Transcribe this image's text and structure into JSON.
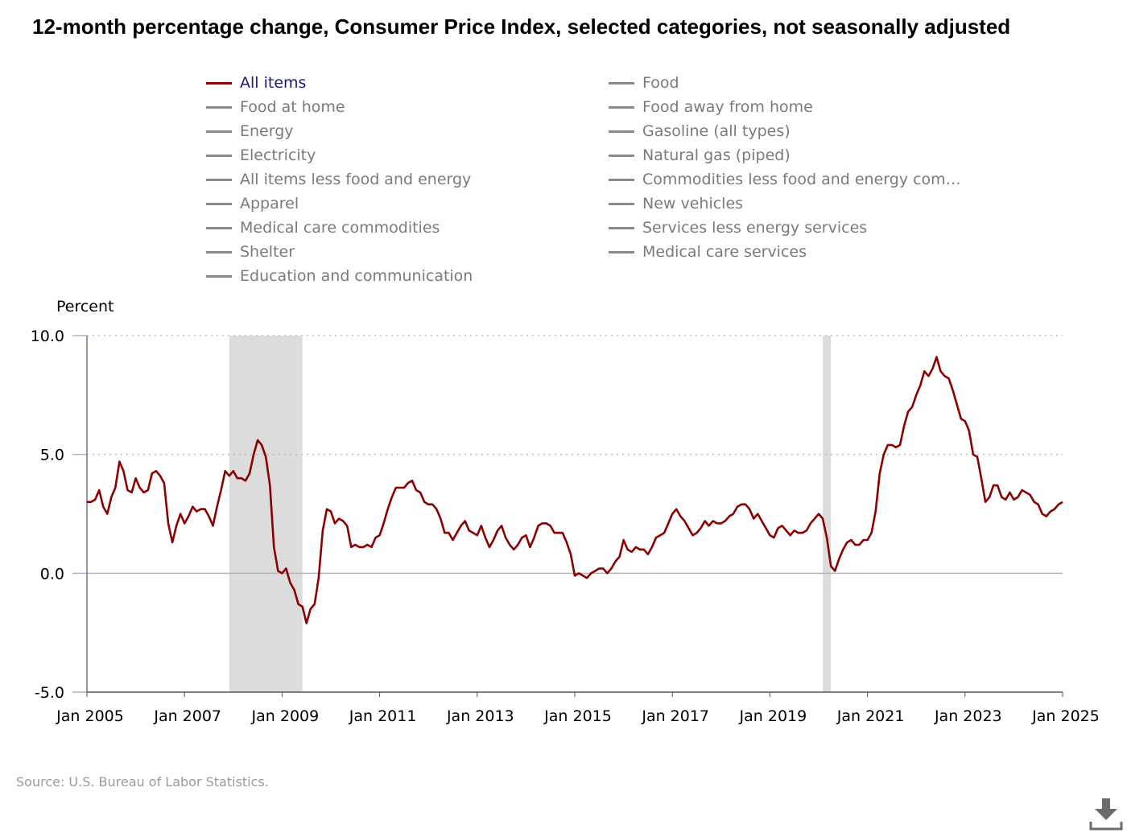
{
  "chart_data": {
    "type": "line",
    "title": "12-month percentage change, Consumer Price Index, selected categories, not seasonally adjusted",
    "ylabel": "Percent",
    "xlabel": "",
    "ylim": [
      -5.0,
      10.0
    ],
    "y_ticks": [
      "10.0",
      "5.0",
      "0.0",
      "-5.0"
    ],
    "x_ticks": [
      "Jan 2005",
      "Jan 2007",
      "Jan 2009",
      "Jan 2011",
      "Jan 2013",
      "Jan 2015",
      "Jan 2017",
      "Jan 2019",
      "Jan 2021",
      "Jan 2023",
      "Jan 2025"
    ],
    "x_range": [
      "2005-01",
      "2025-01"
    ],
    "grid": "horizontal dotted at 5.0 and 10.0; solid zero line",
    "legend_placement": "top, two columns",
    "recession_shading": [
      {
        "start": "2007-12",
        "end": "2009-06"
      },
      {
        "start": "2020-02",
        "end": "2020-04"
      }
    ],
    "legend": [
      {
        "label": "All items",
        "color": "#8b0000",
        "active": true
      },
      {
        "label": "Food",
        "color": "#8a8a8a",
        "active": false
      },
      {
        "label": "Food at home",
        "color": "#8a8a8a",
        "active": false
      },
      {
        "label": "Food away from home",
        "color": "#8a8a8a",
        "active": false
      },
      {
        "label": "Energy",
        "color": "#8a8a8a",
        "active": false
      },
      {
        "label": "Gasoline (all types)",
        "color": "#8a8a8a",
        "active": false
      },
      {
        "label": "Electricity",
        "color": "#8a8a8a",
        "active": false
      },
      {
        "label": "Natural gas (piped)",
        "color": "#8a8a8a",
        "active": false
      },
      {
        "label": "All items less food and energy",
        "color": "#8a8a8a",
        "active": false
      },
      {
        "label": "Commodities less food and energy com…",
        "color": "#8a8a8a",
        "active": false
      },
      {
        "label": "Apparel",
        "color": "#8a8a8a",
        "active": false
      },
      {
        "label": "New vehicles",
        "color": "#8a8a8a",
        "active": false
      },
      {
        "label": "Medical care commodities",
        "color": "#8a8a8a",
        "active": false
      },
      {
        "label": "Services less energy services",
        "color": "#8a8a8a",
        "active": false
      },
      {
        "label": "Shelter",
        "color": "#8a8a8a",
        "active": false
      },
      {
        "label": "Medical care services",
        "color": "#8a8a8a",
        "active": false
      },
      {
        "label": "Education and communication",
        "color": "#8a8a8a",
        "active": false
      }
    ],
    "series": [
      {
        "name": "All items",
        "color": "#8b0000",
        "start": "2005-01",
        "frequency": "monthly",
        "values": [
          3.0,
          3.0,
          3.1,
          3.5,
          2.8,
          2.5,
          3.2,
          3.6,
          4.7,
          4.3,
          3.5,
          3.4,
          4.0,
          3.6,
          3.4,
          3.5,
          4.2,
          4.3,
          4.1,
          3.8,
          2.1,
          1.3,
          2.0,
          2.5,
          2.1,
          2.4,
          2.8,
          2.6,
          2.7,
          2.7,
          2.4,
          2.0,
          2.8,
          3.5,
          4.3,
          4.1,
          4.3,
          4.0,
          4.0,
          3.9,
          4.2,
          5.0,
          5.6,
          5.4,
          4.9,
          3.7,
          1.1,
          0.1,
          0.0,
          0.2,
          -0.4,
          -0.7,
          -1.3,
          -1.4,
          -2.1,
          -1.5,
          -1.3,
          -0.2,
          1.8,
          2.7,
          2.6,
          2.1,
          2.3,
          2.2,
          2.0,
          1.1,
          1.2,
          1.1,
          1.1,
          1.2,
          1.1,
          1.5,
          1.6,
          2.1,
          2.7,
          3.2,
          3.6,
          3.6,
          3.6,
          3.8,
          3.9,
          3.5,
          3.4,
          3.0,
          2.9,
          2.9,
          2.7,
          2.3,
          1.7,
          1.7,
          1.4,
          1.7,
          2.0,
          2.2,
          1.8,
          1.7,
          1.6,
          2.0,
          1.5,
          1.1,
          1.4,
          1.8,
          2.0,
          1.5,
          1.2,
          1.0,
          1.2,
          1.5,
          1.6,
          1.1,
          1.5,
          2.0,
          2.1,
          2.1,
          2.0,
          1.7,
          1.7,
          1.7,
          1.3,
          0.8,
          -0.1,
          0.0,
          -0.1,
          -0.2,
          0.0,
          0.1,
          0.2,
          0.2,
          0.0,
          0.2,
          0.5,
          0.7,
          1.4,
          1.0,
          0.9,
          1.1,
          1.0,
          1.0,
          0.8,
          1.1,
          1.5,
          1.6,
          1.7,
          2.1,
          2.5,
          2.7,
          2.4,
          2.2,
          1.9,
          1.6,
          1.7,
          1.9,
          2.2,
          2.0,
          2.2,
          2.1,
          2.1,
          2.2,
          2.4,
          2.5,
          2.8,
          2.9,
          2.9,
          2.7,
          2.3,
          2.5,
          2.2,
          1.9,
          1.6,
          1.5,
          1.9,
          2.0,
          1.8,
          1.6,
          1.8,
          1.7,
          1.7,
          1.8,
          2.1,
          2.3,
          2.5,
          2.3,
          1.5,
          0.3,
          0.1,
          0.6,
          1.0,
          1.3,
          1.4,
          1.2,
          1.2,
          1.4,
          1.4,
          1.7,
          2.6,
          4.2,
          5.0,
          5.4,
          5.4,
          5.3,
          5.4,
          6.2,
          6.8,
          7.0,
          7.5,
          7.9,
          8.5,
          8.3,
          8.6,
          9.1,
          8.5,
          8.3,
          8.2,
          7.7,
          7.1,
          6.5,
          6.4,
          6.0,
          5.0,
          4.9,
          4.0,
          3.0,
          3.2,
          3.7,
          3.7,
          3.2,
          3.1,
          3.4,
          3.1,
          3.2,
          3.5,
          3.4,
          3.3,
          3.0,
          2.9,
          2.5,
          2.4,
          2.6,
          2.7,
          2.9,
          3.0
        ]
      }
    ]
  },
  "source_note": "Source: U.S. Bureau of Labor Statistics.",
  "download_icon": "download-icon"
}
